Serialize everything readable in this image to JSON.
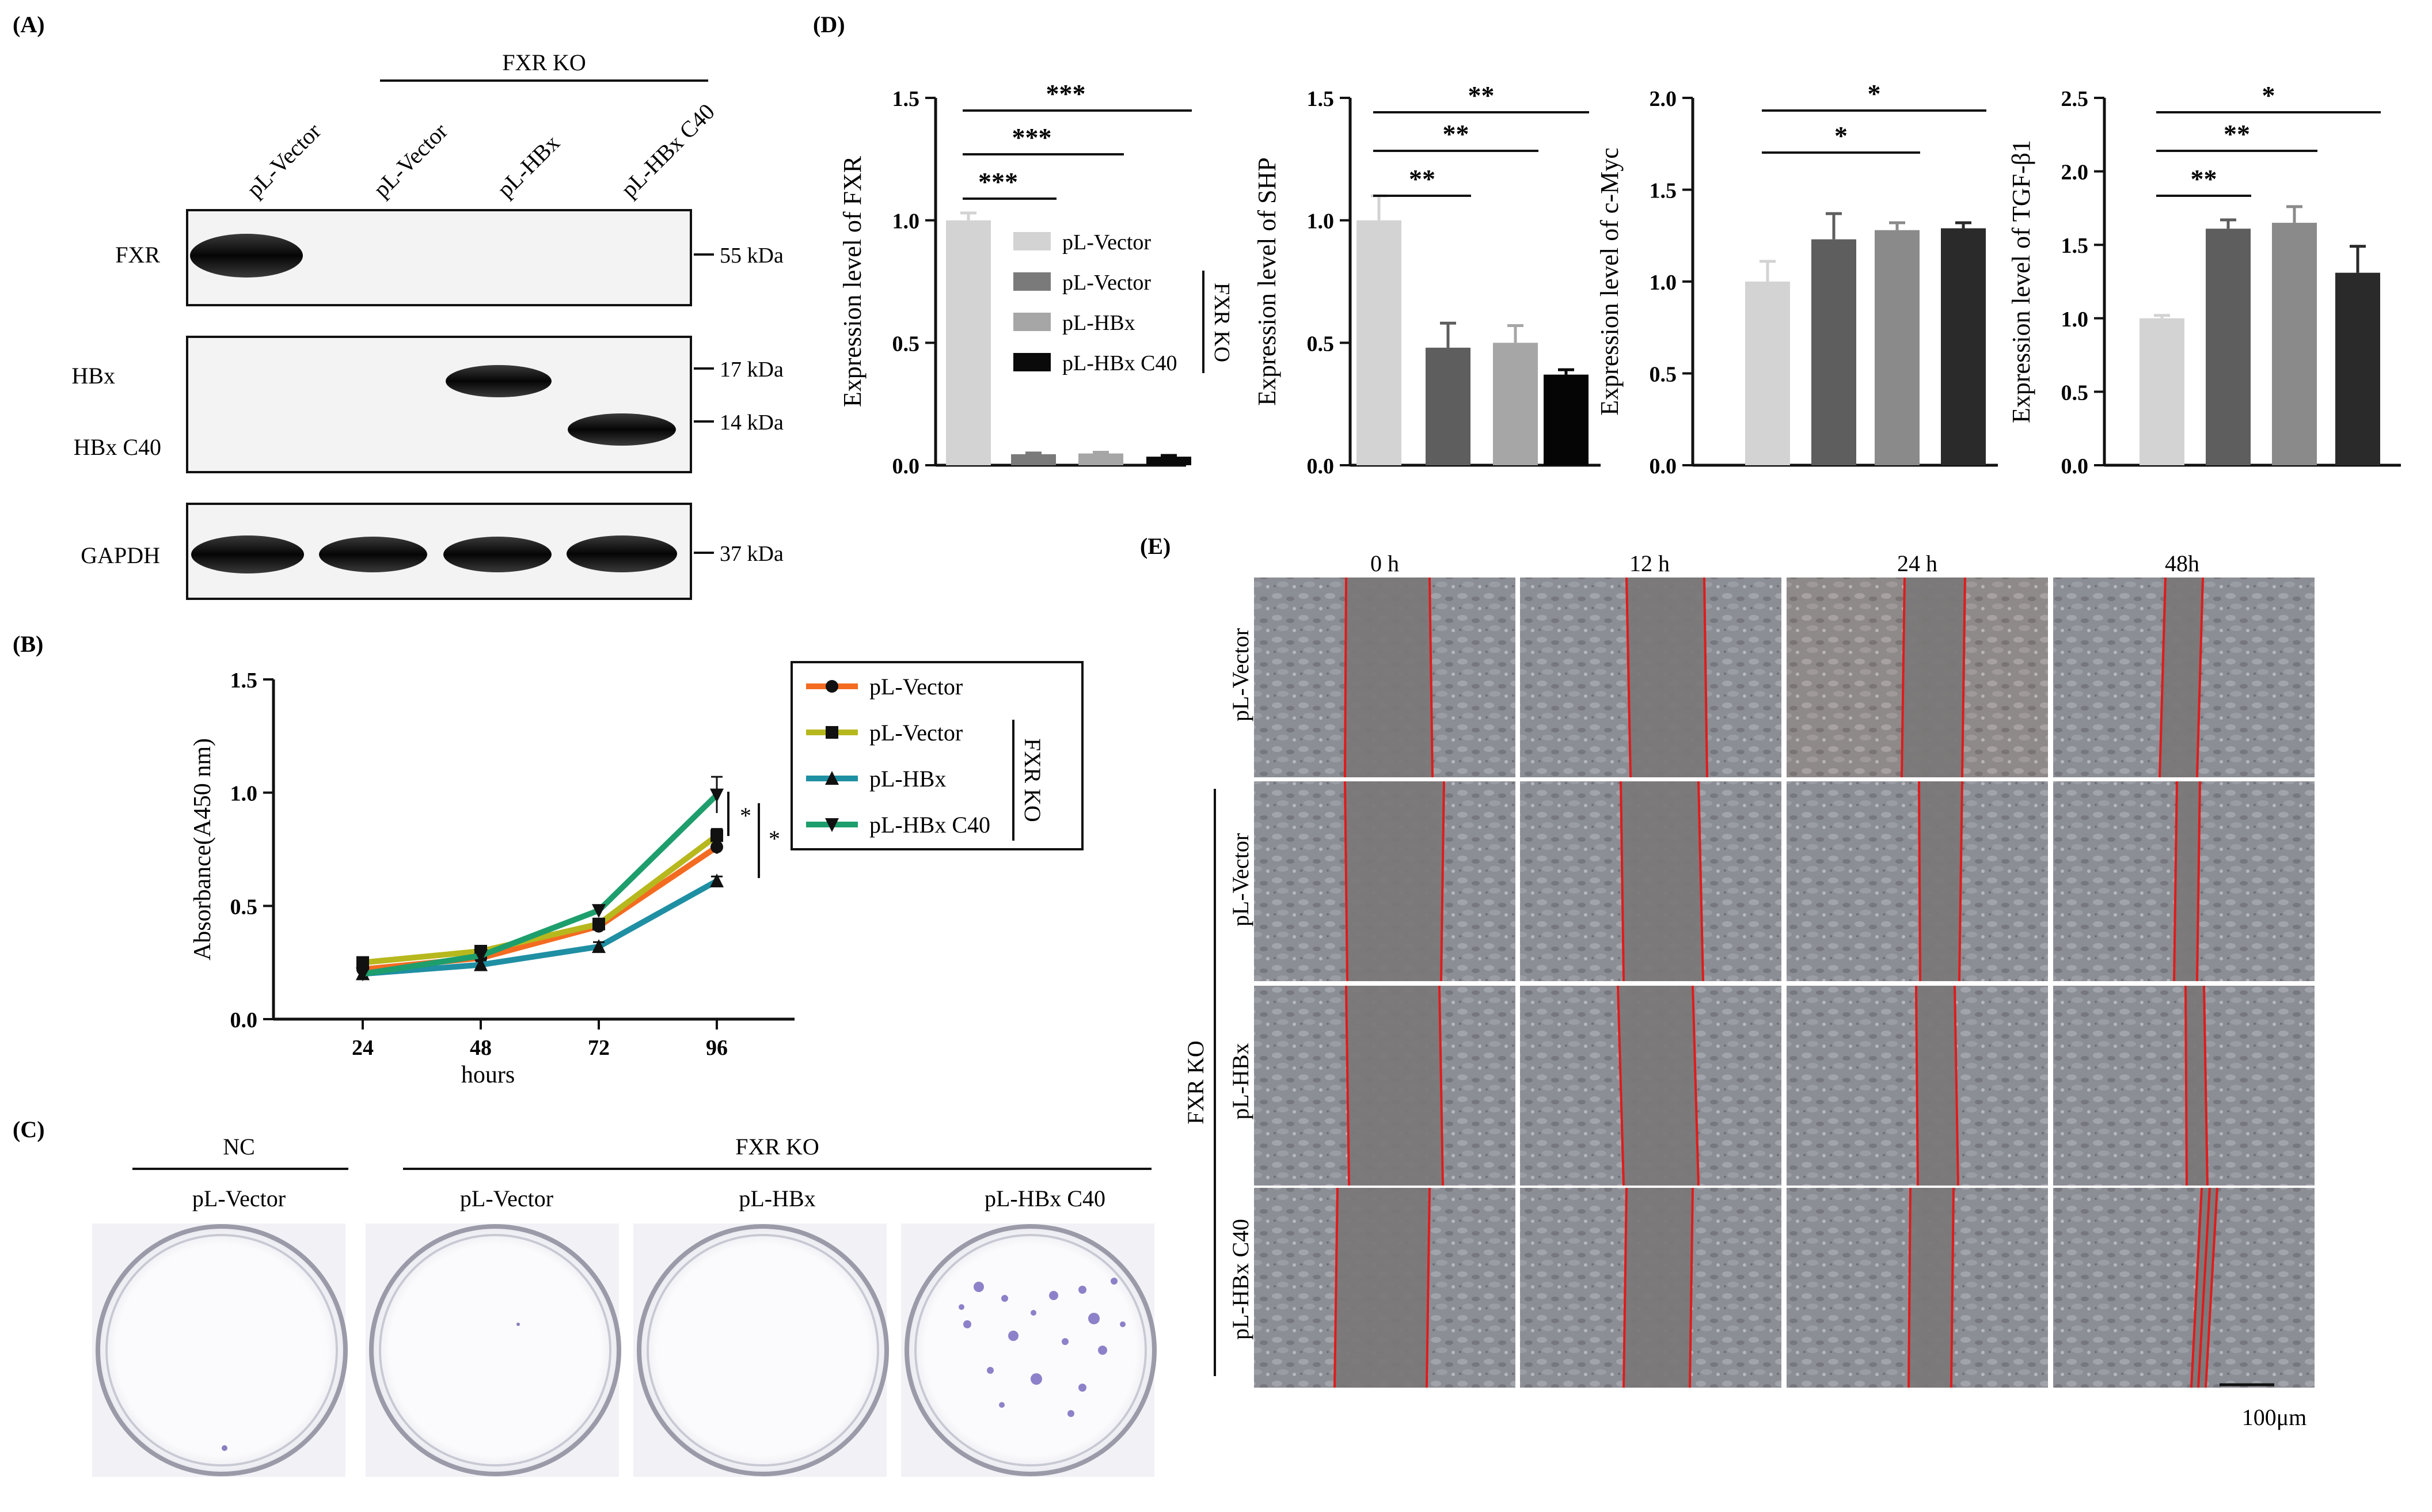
{
  "panels": {
    "A": {
      "label": "(A)",
      "group_label": "FXR KO",
      "lanes": [
        "pL-Vector",
        "pL-Vector",
        "pL-HBx",
        "pL-HBx C40"
      ],
      "blots": [
        {
          "label": "FXR",
          "marker": "55 kDa"
        },
        {
          "label": "HBx",
          "marker": "17 kDa"
        },
        {
          "label": "HBx C40",
          "marker": "14 kDa"
        },
        {
          "label": "GAPDH",
          "marker": "37 kDa"
        }
      ]
    },
    "B": {
      "label": "(B)",
      "sig_top": "*",
      "sig_bottom": "*",
      "legend_group": "FXR KO"
    },
    "C": {
      "label": "(C)",
      "nc_label": "NC",
      "group_label": "FXR KO",
      "dishes": [
        "pL-Vector",
        "pL-Vector",
        "pL-HBx",
        "pL-HBx C40"
      ]
    },
    "D": {
      "label": "(D)",
      "legend": [
        "pL-Vector",
        "pL-Vector",
        "pL-HBx",
        "pL-HBx C40"
      ],
      "legend_group": "FXR KO"
    },
    "E": {
      "label": "(E)",
      "timepoints": [
        "0 h",
        "12 h",
        "24 h",
        "48h"
      ],
      "rows": [
        "pL-Vector",
        "pL-Vector",
        "pL-HBx",
        "pL-HBx C40"
      ],
      "group_label": "FXR KO",
      "scale_bar": "100μm"
    }
  },
  "chart_data": [
    {
      "id": "B",
      "type": "line",
      "xlabel": "hours",
      "ylabel": "Absorbance(A450 nm)",
      "x": [
        24,
        48,
        72,
        96
      ],
      "xticks": [
        "24",
        "48",
        "72",
        "96"
      ],
      "ylim": [
        0,
        1.5
      ],
      "yticks": [
        "0.0",
        "0.5",
        "1.0",
        "1.5"
      ],
      "legend_position": "top-right",
      "series": [
        {
          "name": "pL-Vector",
          "marker": "circle",
          "color": "#f36b21",
          "values": [
            0.22,
            0.27,
            0.41,
            0.76
          ],
          "err": [
            0.02,
            0.02,
            0.02,
            0.03
          ]
        },
        {
          "name": "pL-Vector",
          "marker": "square",
          "color": "#b7b81d",
          "values": [
            0.25,
            0.3,
            0.42,
            0.81
          ],
          "err": [
            0.02,
            0.02,
            0.02,
            0.03
          ]
        },
        {
          "name": "pL-HBx",
          "marker": "triangle-up",
          "color": "#1f8fa3",
          "values": [
            0.2,
            0.24,
            0.32,
            0.61
          ],
          "err": [
            0.02,
            0.02,
            0.02,
            0.02
          ]
        },
        {
          "name": "pL-HBx C40",
          "marker": "triangle-down",
          "color": "#1e9e6c",
          "values": [
            0.2,
            0.28,
            0.48,
            0.99
          ],
          "err": [
            0.02,
            0.02,
            0.02,
            0.08
          ]
        }
      ]
    },
    {
      "id": "D1",
      "type": "bar",
      "ylabel": "Expression level of FXR",
      "ylim": [
        0,
        1.5
      ],
      "yticks": [
        "0.0",
        "0.5",
        "1.0",
        "1.5"
      ],
      "categories": [
        "pL-Vector",
        "pL-Vector",
        "pL-HBx",
        "pL-HBx C40"
      ],
      "values": [
        1.0,
        0.045,
        0.048,
        0.035
      ],
      "err": [
        0.03,
        0.005,
        0.005,
        0.005
      ],
      "colors": [
        "#d3d3d3",
        "#7a7a7a",
        "#a6a6a6",
        "#0a0a0a"
      ],
      "significance": [
        {
          "from": 0,
          "to": 1,
          "label": "***"
        },
        {
          "from": 0,
          "to": 2,
          "label": "***"
        },
        {
          "from": 0,
          "to": 3,
          "label": "***"
        }
      ]
    },
    {
      "id": "D2",
      "type": "bar",
      "ylabel": "Expression level of SHP",
      "ylim": [
        0,
        1.5
      ],
      "yticks": [
        "0.0",
        "0.5",
        "1.0",
        "1.5"
      ],
      "categories": [
        "pL-Vector",
        "pL-Vector",
        "pL-HBx",
        "pL-HBx C40"
      ],
      "values": [
        1.0,
        0.48,
        0.5,
        0.37
      ],
      "err": [
        0.1,
        0.1,
        0.07,
        0.02
      ],
      "colors": [
        "#d3d3d3",
        "#5e5e5e",
        "#a6a6a6",
        "#050505"
      ],
      "significance": [
        {
          "from": 0,
          "to": 1,
          "label": "**"
        },
        {
          "from": 0,
          "to": 2,
          "label": "**"
        },
        {
          "from": 0,
          "to": 3,
          "label": "**"
        }
      ]
    },
    {
      "id": "D3",
      "type": "bar",
      "ylabel": "Expression level of c-Myc",
      "ylim": [
        0,
        2.0
      ],
      "yticks": [
        "0.0",
        "0.5",
        "1.0",
        "1.5",
        "2.0"
      ],
      "categories": [
        "pL-Vector",
        "pL-Vector",
        "pL-HBx",
        "pL-HBx C40"
      ],
      "values": [
        1.0,
        1.23,
        1.28,
        1.29
      ],
      "err": [
        0.11,
        0.14,
        0.04,
        0.03
      ],
      "colors": [
        "#d3d3d3",
        "#5e5e5e",
        "#8a8a8a",
        "#2a2a2a"
      ],
      "significance": [
        {
          "from": 0,
          "to": 2,
          "label": "*"
        },
        {
          "from": 0,
          "to": 3,
          "label": "*"
        }
      ]
    },
    {
      "id": "D4",
      "type": "bar",
      "ylabel": "Expression level of TGF-β1",
      "ylim": [
        0,
        2.5
      ],
      "yticks": [
        "0.0",
        "0.5",
        "1.0",
        "1.5",
        "2.0",
        "2.5"
      ],
      "categories": [
        "pL-Vector",
        "pL-Vector",
        "pL-HBx",
        "pL-HBx C40"
      ],
      "values": [
        1.0,
        1.61,
        1.65,
        1.31
      ],
      "err": [
        0.02,
        0.06,
        0.11,
        0.18
      ],
      "colors": [
        "#d3d3d3",
        "#5e5e5e",
        "#8a8a8a",
        "#2a2a2a"
      ],
      "significance": [
        {
          "from": 0,
          "to": 1,
          "label": "**"
        },
        {
          "from": 0,
          "to": 2,
          "label": "**"
        },
        {
          "from": 0,
          "to": 3,
          "label": "*"
        }
      ]
    }
  ]
}
